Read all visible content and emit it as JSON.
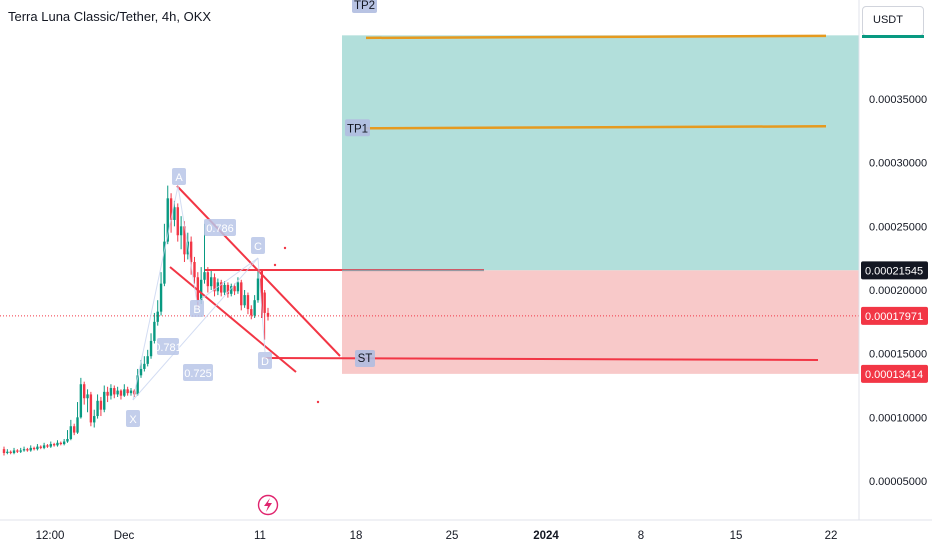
{
  "header": {
    "title": "Terra Luna Classic/Tether, 4h, OKX",
    "currency_button": "USDT"
  },
  "colors": {
    "up": "#089981",
    "down": "#f23645",
    "profit_zone": "#b2dfdb",
    "loss_zone": "#f8c9c9",
    "target_line": "#e59a1f",
    "pattern_line": "#f23645",
    "point_label_bg": "#b8c6e8",
    "tag_grey": "#131722",
    "tag_red": "#f23645"
  },
  "chart_data": {
    "type": "candlestick",
    "y_axis": {
      "ticks": [
        "0.00035000",
        "0.00030000",
        "0.00025000",
        "0.00020000",
        "0.00015000",
        "0.00010000",
        "0.00005000"
      ],
      "tick_values": [
        0.00035,
        0.0003,
        0.00025,
        0.0002,
        0.00015,
        0.0001,
        5e-05
      ]
    },
    "x_axis": {
      "ticks": [
        "12:00",
        "Dec",
        "11",
        "18",
        "25",
        "2024",
        "8",
        "15",
        "22"
      ]
    },
    "price_tags": [
      {
        "label": "0.00021545",
        "value": 0.00021545,
        "style": "grey"
      },
      {
        "label": "0.00017971",
        "value": 0.00017971,
        "style": "red"
      },
      {
        "label": "0.00013414",
        "value": 0.00013414,
        "style": "red"
      }
    ],
    "position": {
      "entry": 0.00021545,
      "stop": 0.00013414,
      "take_profit_top": 0.0004
    },
    "targets": [
      {
        "label": "TP2",
        "value": 0.000398
      },
      {
        "label": "TP1",
        "value": 0.000327
      }
    ],
    "stop_line": {
      "label": "ST",
      "value": 0.000147
    },
    "pattern_points": [
      "A",
      "B",
      "C",
      "X",
      "D"
    ],
    "fib_labels": [
      "0.786",
      "0.781",
      "0.725"
    ],
    "candles": [
      [
        7.5e-05,
        7.2e-05,
        7.7e-05,
        7e-05
      ],
      [
        7.2e-05,
        7.3e-05,
        7.5e-05,
        7.1e-05
      ],
      [
        7.3e-05,
        7.2e-05,
        7.4e-05,
        7.1e-05
      ],
      [
        7.2e-05,
        7.4e-05,
        7.6e-05,
        7.1e-05
      ],
      [
        7.4e-05,
        7.3e-05,
        7.5e-05,
        7.2e-05
      ],
      [
        7.3e-05,
        7.4e-05,
        7.6e-05,
        7.2e-05
      ],
      [
        7.4e-05,
        7.5e-05,
        7.7e-05,
        7.3e-05
      ],
      [
        7.5e-05,
        7.4e-05,
        7.6e-05,
        7.3e-05
      ],
      [
        7.4e-05,
        7.6e-05,
        7.8e-05,
        7.3e-05
      ],
      [
        7.6e-05,
        7.5e-05,
        7.7e-05,
        7.4e-05
      ],
      [
        7.5e-05,
        7.7e-05,
        7.9e-05,
        7.4e-05
      ],
      [
        7.7e-05,
        7.6e-05,
        7.8e-05,
        7.5e-05
      ],
      [
        7.6e-05,
        7.8e-05,
        8e-05,
        7.5e-05
      ],
      [
        7.8e-05,
        7.7e-05,
        7.9e-05,
        7.6e-05
      ],
      [
        7.7e-05,
        7.9e-05,
        8.1e-05,
        7.6e-05
      ],
      [
        7.9e-05,
        7.8e-05,
        8e-05,
        7.7e-05
      ],
      [
        7.8e-05,
        8e-05,
        8.2e-05,
        7.7e-05
      ],
      [
        8e-05,
        7.9e-05,
        8.1e-05,
        7.8e-05
      ],
      [
        7.9e-05,
        8.1e-05,
        8.3e-05,
        7.8e-05
      ],
      [
        8.1e-05,
        8.3e-05,
        9e-05,
        8e-05
      ],
      [
        8.3e-05,
        9.3e-05,
        9.8e-05,
        8.2e-05
      ],
      [
        9.3e-05,
        8.8e-05,
        9.5e-05,
        8.6e-05
      ],
      [
        8.8e-05,
        0.0001,
        0.000112,
        8.7e-05
      ],
      [
        0.0001,
        0.000126,
        0.000131,
        9.9e-05
      ],
      [
        0.000126,
        0.000115,
        0.000128,
        0.00011
      ],
      [
        0.000115,
        0.000118,
        0.000122,
        0.000104
      ],
      [
        0.000118,
        9.6e-05,
        0.00012,
        9.3e-05
      ],
      [
        9.6e-05,
        0.000101,
        0.000106,
        9.2e-05
      ],
      [
        0.000101,
        0.000113,
        0.000118,
        9.9e-05
      ],
      [
        0.000113,
        0.000106,
        0.000116,
        0.000101
      ],
      [
        0.000106,
        0.00012,
        0.000125,
        0.000104
      ],
      [
        0.00012,
        0.000117,
        0.000124,
        0.000112
      ],
      [
        0.000117,
        0.000123,
        0.000126,
        0.000114
      ],
      [
        0.000123,
        0.000118,
        0.000125,
        0.000115
      ],
      [
        0.000118,
        0.000121,
        0.000124,
        0.000116
      ],
      [
        0.000121,
        0.000117,
        0.000122,
        0.000114
      ],
      [
        0.000117,
        0.000122,
        0.000126,
        0.000116
      ],
      [
        0.000122,
        0.000119,
        0.000124,
        0.000117
      ],
      [
        0.000119,
        0.000121,
        0.000123,
        0.000117
      ],
      [
        0.000121,
        0.000118,
        0.000122,
        0.000116
      ],
      [
        0.000118,
        0.000133,
        0.000138,
        0.000117
      ],
      [
        0.000133,
        0.000138,
        0.000145,
        0.000131
      ],
      [
        0.000138,
        0.000142,
        0.000148,
        0.000136
      ],
      [
        0.000142,
        0.000148,
        0.000153,
        0.00014
      ],
      [
        0.000148,
        0.00016,
        0.000166,
        0.000146
      ],
      [
        0.00016,
        0.000175,
        0.000182,
        0.000158
      ],
      [
        0.000175,
        0.000183,
        0.000192,
        0.000172
      ],
      [
        0.000183,
        0.000205,
        0.000214,
        0.00018
      ],
      [
        0.000205,
        0.000238,
        0.000252,
        0.000203
      ],
      [
        0.000238,
        0.000272,
        0.000282,
        0.000236
      ],
      [
        0.000272,
        0.000255,
        0.000276,
        0.000245
      ],
      [
        0.000255,
        0.000265,
        0.00027,
        0.00025
      ],
      [
        0.000265,
        0.000243,
        0.000268,
        0.000238
      ],
      [
        0.000243,
        0.00025,
        0.000258,
        0.000232
      ],
      [
        0.00025,
        0.000228,
        0.000254,
        0.000222
      ],
      [
        0.000228,
        0.000238,
        0.000245,
        0.000224
      ],
      [
        0.000238,
        0.000222,
        0.000242,
        0.000212
      ],
      [
        0.000222,
        0.00021,
        0.000226,
        0.000205
      ],
      [
        0.00021,
        0.000192,
        0.000214,
        0.000186
      ],
      [
        0.000192,
        0.000208,
        0.000218,
        0.000189
      ],
      [
        0.000208,
        0.000214,
        0.000252,
        0.000205
      ],
      [
        0.000214,
        0.000203,
        0.000218,
        0.000198
      ],
      [
        0.000203,
        0.00021,
        0.000216,
        0.0002
      ],
      [
        0.00021,
        0.000199,
        0.000213,
        0.000195
      ],
      [
        0.000199,
        0.000206,
        0.000209,
        0.000196
      ],
      [
        0.000206,
        0.000198,
        0.000208,
        0.000195
      ],
      [
        0.000198,
        0.000204,
        0.000207,
        0.000196
      ],
      [
        0.000204,
        0.000197,
        0.000206,
        0.000194
      ],
      [
        0.000197,
        0.000203,
        0.000205,
        0.000195
      ],
      [
        0.000203,
        0.000199,
        0.000205,
        0.000196
      ],
      [
        0.000199,
        0.000206,
        0.00021,
        0.000197
      ],
      [
        0.000206,
        0.000188,
        0.000208,
        0.000184
      ],
      [
        0.000188,
        0.000196,
        0.0002,
        0.000186
      ],
      [
        0.000196,
        0.000185,
        0.000198,
        0.000181
      ],
      [
        0.000185,
        0.00018,
        0.000188,
        0.000177
      ],
      [
        0.00018,
        0.000192,
        0.000196,
        0.000178
      ],
      [
        0.000192,
        0.000209,
        0.000216,
        0.00019
      ],
      [
        0.000209,
        0.000198,
        0.000211,
        0.000195
      ],
      [
        0.000198,
        0.000182,
        0.0002,
        0.000161
      ],
      [
        0.000182,
        0.000179,
        0.000186,
        0.000176
      ]
    ]
  }
}
